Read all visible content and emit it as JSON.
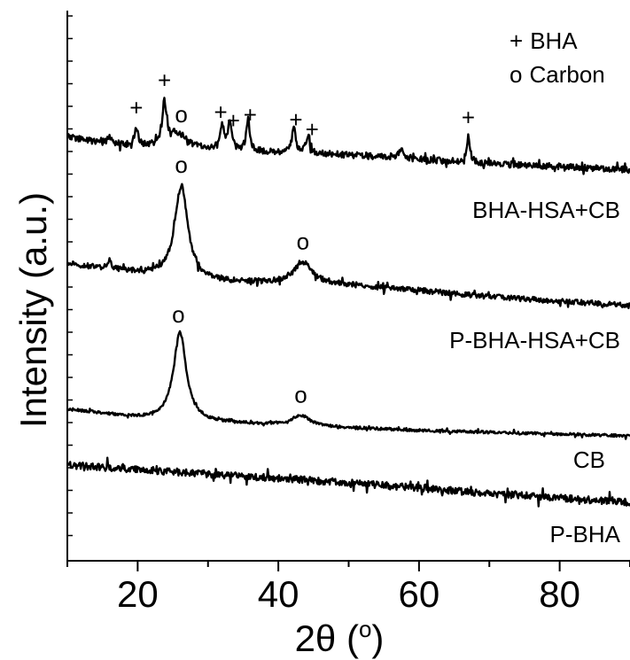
{
  "chart_data": {
    "type": "line",
    "title": "",
    "xlabel": "2θ (o)",
    "ylabel": "Intensity (a.u.)",
    "xlim": [
      10,
      90
    ],
    "x_ticks": [
      20,
      40,
      60,
      80
    ],
    "y_ticks_shown": false,
    "grid": false,
    "legend": {
      "placement": "top-right",
      "entries": [
        {
          "symbol": "+",
          "label": "BHA"
        },
        {
          "symbol": "o",
          "label": "Carbon"
        }
      ]
    },
    "series": [
      {
        "name": "BHA-HSA+CB",
        "baseline": [
          [
            10,
            155
          ],
          [
            20,
            167
          ],
          [
            30,
            170
          ],
          [
            40,
            172
          ],
          [
            50,
            175
          ],
          [
            60,
            180
          ],
          [
            70,
            185
          ],
          [
            80,
            188
          ],
          [
            90,
            192
          ]
        ],
        "peaks": [
          {
            "x": 16.0,
            "h": 8,
            "w": 0.3
          },
          {
            "x": 19.8,
            "h": 20,
            "w": 0.35
          },
          {
            "x": 23.8,
            "h": 45,
            "w": 0.35
          },
          {
            "x": 25.5,
            "h": 18,
            "w": 1.8
          },
          {
            "x": 32.0,
            "h": 25,
            "w": 0.3
          },
          {
            "x": 33.1,
            "h": 35,
            "w": 0.3
          },
          {
            "x": 35.7,
            "h": 35,
            "w": 0.3
          },
          {
            "x": 42.2,
            "h": 28,
            "w": 0.3
          },
          {
            "x": 44.2,
            "h": 20,
            "w": 0.3
          },
          {
            "x": 57.5,
            "h": 8,
            "w": 0.5
          },
          {
            "x": 67.0,
            "h": 28,
            "w": 0.3
          }
        ],
        "noise": 3.5,
        "markers": [
          {
            "x": 19.8,
            "symbol": "+"
          },
          {
            "x": 23.8,
            "symbol": "+"
          },
          {
            "x": 26.2,
            "symbol": "o"
          },
          {
            "x": 31.8,
            "symbol": "+"
          },
          {
            "x": 33.6,
            "symbol": "+"
          },
          {
            "x": 36.0,
            "symbol": "+"
          },
          {
            "x": 42.5,
            "symbol": "+"
          },
          {
            "x": 44.8,
            "symbol": "+"
          },
          {
            "x": 67.0,
            "symbol": "+"
          }
        ]
      },
      {
        "name": "P-BHA-HSA+CB",
        "baseline": [
          [
            10,
            298
          ],
          [
            20,
            308
          ],
          [
            30,
            318
          ],
          [
            40,
            320
          ],
          [
            50,
            322
          ],
          [
            60,
            328
          ],
          [
            70,
            335
          ],
          [
            80,
            340
          ],
          [
            90,
            345
          ]
        ],
        "peaks": [
          {
            "x": 16.0,
            "h": 10,
            "w": 0.3
          },
          {
            "x": 26.2,
            "h": 105,
            "w": 1.1
          },
          {
            "x": 43.5,
            "h": 25,
            "w": 1.6
          }
        ],
        "noise": 3,
        "markers": [
          {
            "x": 26.2,
            "symbol": "o"
          },
          {
            "x": 43.5,
            "symbol": "o"
          }
        ]
      },
      {
        "name": "CB",
        "baseline": [
          [
            10,
            462
          ],
          [
            20,
            472
          ],
          [
            30,
            477
          ],
          [
            40,
            480
          ],
          [
            50,
            483
          ],
          [
            60,
            486
          ],
          [
            70,
            488
          ],
          [
            80,
            490
          ],
          [
            90,
            492
          ]
        ],
        "peaks": [
          {
            "x": 26.0,
            "h": 100,
            "w": 1.1
          },
          {
            "x": 43.2,
            "h": 12,
            "w": 1.5
          }
        ],
        "noise": 1.5,
        "markers": [
          {
            "x": 25.8,
            "symbol": "o"
          },
          {
            "x": 43.2,
            "symbol": "o"
          }
        ]
      },
      {
        "name": "P-BHA",
        "baseline": [
          [
            10,
            525
          ],
          [
            30,
            535
          ],
          [
            50,
            545
          ],
          [
            70,
            557
          ],
          [
            90,
            567
          ]
        ],
        "peaks": [],
        "noise": 4,
        "markers": []
      }
    ]
  }
}
